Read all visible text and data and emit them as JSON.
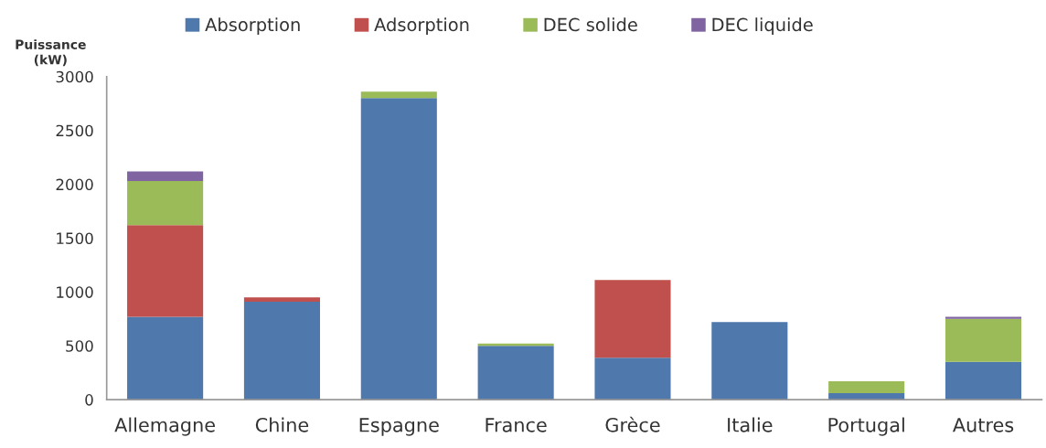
{
  "chart_data": {
    "type": "bar",
    "stacked": true,
    "ylabel": "Puissance\n(kW)",
    "categories": [
      "Allemagne",
      "Chine",
      "Espagne",
      "France",
      "Grèce",
      "Italie",
      "Portugal",
      "Autres"
    ],
    "series": [
      {
        "name": "Absorption",
        "color": "#4f79ad",
        "values": [
          770,
          910,
          2800,
          500,
          390,
          720,
          60,
          350
        ]
      },
      {
        "name": "Adsorption",
        "color": "#c0504d",
        "values": [
          850,
          40,
          null,
          null,
          720,
          null,
          null,
          null
        ]
      },
      {
        "name": "DEC solide",
        "color": "#9bbb59",
        "values": [
          410,
          null,
          60,
          20,
          null,
          null,
          110,
          400
        ]
      },
      {
        "name": "DEC liquide",
        "color": "#8064a2",
        "values": [
          90,
          null,
          null,
          null,
          null,
          null,
          null,
          20
        ]
      }
    ],
    "ylim": [
      0,
      3000
    ],
    "yticks": [
      0,
      500,
      1000,
      1500,
      2000,
      2500,
      3000
    ],
    "grid": false,
    "legend": "top"
  }
}
